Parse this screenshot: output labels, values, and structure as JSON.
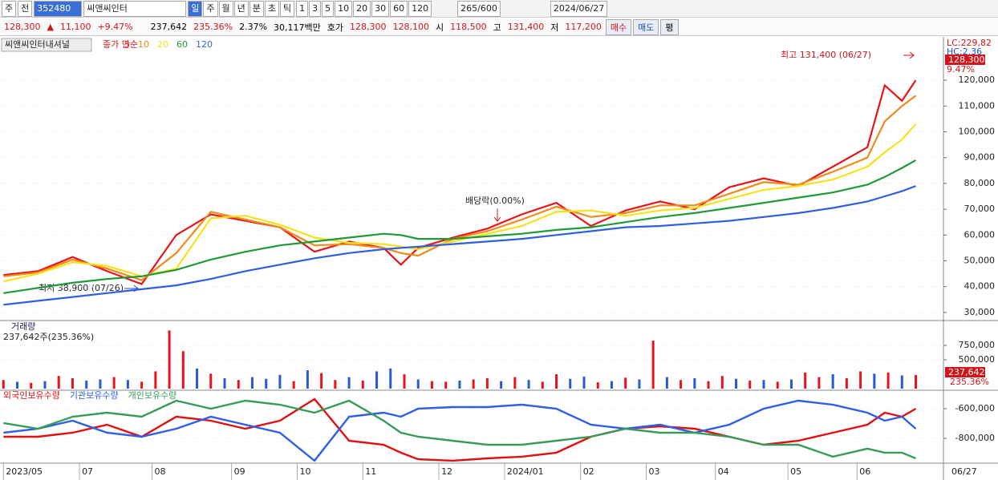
{
  "toolbar": {
    "market": "주",
    "prev": "전",
    "code": "352480",
    "name": "씨앤씨인터",
    "periods": [
      "일",
      "주",
      "월",
      "년",
      "분",
      "초",
      "틱"
    ],
    "intervals": [
      "1",
      "3",
      "5",
      "10",
      "20",
      "30",
      "60",
      "120"
    ],
    "count": "265/600",
    "date": "2024/06/27"
  },
  "info": {
    "price": "128,300",
    "arrow": "▲",
    "change": "11,100",
    "change_pct": "+9.47%",
    "volume": "237,642",
    "volume_pct": "235.36%",
    "turnover": "2.37%",
    "amount": "30,117백만",
    "quote_label": "호가",
    "ask": "128,300",
    "bid": "128,100",
    "open_label": "시",
    "open": "118,500",
    "high_label": "고",
    "high": "131,400",
    "low_label": "저",
    "low": "117,200",
    "buy": "매수",
    "sell": "매도",
    "avg": "평"
  },
  "chart_data": [
    {
      "type": "line",
      "title": "씨앤씨인터내셔널",
      "legend_prefix": "종가 단순",
      "x": [
        0,
        10,
        20,
        30,
        40,
        50,
        60,
        70,
        80,
        90,
        100,
        110,
        115,
        120,
        130,
        140,
        150,
        160,
        170,
        180,
        190,
        200,
        210,
        220,
        230,
        240,
        250,
        255,
        260,
        264
      ],
      "series": [
        {
          "name": "5",
          "color": "#e8141a",
          "values": [
            44500,
            46000,
            51500,
            46000,
            41000,
            60000,
            68000,
            65500,
            63000,
            53500,
            57500,
            55000,
            48500,
            55000,
            59000,
            62500,
            68000,
            72500,
            63500,
            69500,
            73000,
            70000,
            78500,
            82000,
            79000,
            86500,
            94000,
            118000,
            112000,
            120000
          ]
        },
        {
          "name": "10",
          "color": "#f08a1a",
          "values": [
            44000,
            45500,
            50500,
            47000,
            42500,
            53000,
            69000,
            66000,
            63000,
            56000,
            56500,
            55000,
            53000,
            52000,
            58500,
            61500,
            66000,
            71000,
            67000,
            68500,
            71500,
            71500,
            76000,
            80500,
            79500,
            84500,
            90000,
            104000,
            110000,
            114000
          ]
        },
        {
          "name": "20",
          "color": "#f5e21c",
          "values": [
            42000,
            45000,
            49500,
            48000,
            44000,
            47000,
            66500,
            67500,
            64000,
            59000,
            57000,
            56500,
            55500,
            54500,
            57500,
            60500,
            63500,
            69000,
            69500,
            67500,
            69500,
            70500,
            74000,
            77500,
            79000,
            81500,
            86500,
            92000,
            97000,
            103000
          ]
        },
        {
          "name": "60",
          "color": "#1f9a34",
          "values": [
            37500,
            39500,
            41500,
            43000,
            44000,
            46500,
            50500,
            53500,
            56000,
            57500,
            59000,
            60500,
            60000,
            58500,
            58500,
            59500,
            60500,
            62000,
            63000,
            65000,
            67000,
            68500,
            70500,
            72500,
            74500,
            76500,
            79500,
            82500,
            86000,
            89000
          ]
        },
        {
          "name": "120",
          "color": "#2f5fe0",
          "values": [
            33000,
            34500,
            36000,
            37500,
            39000,
            40500,
            43000,
            46000,
            48500,
            51000,
            53000,
            54500,
            55000,
            55500,
            56500,
            57500,
            58500,
            60000,
            61500,
            63000,
            63500,
            64500,
            65500,
            67000,
            68500,
            70500,
            73000,
            75000,
            77000,
            79000
          ]
        }
      ],
      "xlim": [
        -1,
        272
      ],
      "ylim": [
        27800,
        134000
      ],
      "yticks": [
        {
          "value": 30000,
          "label": "30,000"
        },
        {
          "value": 40000,
          "label": "40,000"
        },
        {
          "value": 50000,
          "label": "50,000"
        },
        {
          "value": 60000,
          "label": "60,000"
        },
        {
          "value": 70000,
          "label": "70,000"
        },
        {
          "value": 80000,
          "label": "80,000"
        },
        {
          "value": 90000,
          "label": "90,000"
        },
        {
          "value": 100000,
          "label": "100,000"
        },
        {
          "value": 110000,
          "label": "110,000"
        },
        {
          "value": 120000,
          "label": "120,000"
        }
      ],
      "annotations": {
        "high": "최고 131,400 (06/27)",
        "low": "최저 38,900 (07/26)",
        "dividend": "배당락(0.00%)"
      },
      "right_labels": {
        "lc": "LC:229,82",
        "hc": "HC:2.36",
        "price": "128,300",
        "pct": "9.47%"
      }
    },
    {
      "type": "bar",
      "title": "거래량",
      "subtitle": "237,642주(235.36%)",
      "x": [
        0,
        4,
        8,
        12,
        16,
        20,
        24,
        28,
        32,
        36,
        40,
        44,
        48,
        52,
        56,
        60,
        64,
        68,
        72,
        76,
        80,
        84,
        88,
        92,
        96,
        100,
        104,
        108,
        112,
        116,
        120,
        124,
        128,
        132,
        136,
        140,
        144,
        148,
        152,
        156,
        160,
        164,
        168,
        172,
        176,
        180,
        184,
        188,
        192,
        196,
        200,
        204,
        208,
        212,
        216,
        220,
        224,
        228,
        232,
        236,
        240,
        244,
        248,
        252,
        256,
        260,
        264
      ],
      "series": [
        {
          "color": "#e8141a",
          "values": [
            150000,
            null,
            100000,
            null,
            220000,
            180000,
            null,
            null,
            200000,
            null,
            120000,
            300000,
            1010000,
            650000,
            null,
            260000,
            null,
            150000,
            null,
            null,
            null,
            130000,
            null,
            270000,
            150000,
            null,
            140000,
            null,
            null,
            250000,
            null,
            130000,
            120000,
            null,
            160000,
            180000,
            null,
            200000,
            null,
            120000,
            250000,
            null,
            null,
            110000,
            null,
            190000,
            null,
            833000,
            null,
            150000,
            null,
            130000,
            220000,
            null,
            140000,
            null,
            120000,
            null,
            280000,
            200000,
            null,
            180000,
            300000,
            null,
            280000,
            null,
            237642
          ]
        },
        {
          "color": "#2a5ad8",
          "values": [
            null,
            120000,
            null,
            130000,
            null,
            null,
            140000,
            160000,
            null,
            150000,
            null,
            null,
            null,
            null,
            350000,
            null,
            180000,
            null,
            200000,
            170000,
            240000,
            null,
            320000,
            null,
            null,
            200000,
            null,
            300000,
            350000,
            null,
            160000,
            null,
            null,
            140000,
            null,
            null,
            130000,
            null,
            150000,
            null,
            null,
            170000,
            210000,
            null,
            130000,
            null,
            160000,
            null,
            200000,
            null,
            180000,
            null,
            null,
            170000,
            null,
            150000,
            null,
            160000,
            null,
            null,
            250000,
            null,
            null,
            260000,
            null,
            230000,
            null
          ]
        }
      ],
      "xlim": [
        -1,
        272
      ],
      "ylim": [
        0,
        1140000
      ],
      "yticks": [
        {
          "value": 500000,
          "label": "500,000"
        },
        {
          "value": 750000,
          "label": "750,000"
        }
      ],
      "right_labels": {
        "volume": "237,642",
        "pct": "235.36%"
      }
    },
    {
      "type": "line",
      "x": [
        0,
        10,
        20,
        30,
        40,
        50,
        60,
        70,
        80,
        90,
        100,
        110,
        115,
        120,
        130,
        140,
        150,
        160,
        170,
        180,
        190,
        200,
        210,
        220,
        230,
        240,
        250,
        255,
        260,
        264
      ],
      "series": [
        {
          "name": "외국인보유수량",
          "color": "#e01010",
          "values": [
            -789000,
            -789000,
            -762000,
            -708000,
            -789000,
            -654000,
            -681000,
            -735000,
            -681000,
            -535000,
            -816000,
            -843000,
            -897000,
            -941000,
            -951000,
            -935000,
            -924000,
            -897000,
            -789000,
            -735000,
            -719000,
            -735000,
            -789000,
            -843000,
            -816000,
            -762000,
            -708000,
            -627000,
            -654000,
            -600000
          ]
        },
        {
          "name": "기관보유수량",
          "color": "#2f5fe8",
          "values": [
            -762000,
            -735000,
            -681000,
            -762000,
            -789000,
            -735000,
            -654000,
            -708000,
            -762000,
            -951000,
            -654000,
            -627000,
            -654000,
            -600000,
            -589000,
            -589000,
            -573000,
            -600000,
            -708000,
            -735000,
            -708000,
            -762000,
            -708000,
            -600000,
            -546000,
            -573000,
            -627000,
            -681000,
            -654000,
            -735000
          ]
        },
        {
          "name": "개인보유수량",
          "color": "#3a9a5a",
          "values": [
            -697000,
            -735000,
            -654000,
            -627000,
            -654000,
            -546000,
            -600000,
            -546000,
            -573000,
            -627000,
            -546000,
            -681000,
            -762000,
            -789000,
            -816000,
            -843000,
            -843000,
            -816000,
            -789000,
            -735000,
            -762000,
            -762000,
            -789000,
            -843000,
            -843000,
            -924000,
            -870000,
            -897000,
            -897000,
            -935000
          ]
        }
      ],
      "xlim": [
        -1,
        272
      ],
      "ylim": [
        -967600,
        -491900
      ],
      "yticks": [
        {
          "value": -800000,
          "label": "-800,000"
        },
        {
          "value": -600000,
          "label": "-600,000"
        }
      ],
      "xticks": [
        {
          "value": 0,
          "label": "2023/05"
        },
        {
          "value": 22,
          "label": "07"
        },
        {
          "value": 43,
          "label": "08"
        },
        {
          "value": 66,
          "label": "09"
        },
        {
          "value": 85,
          "label": "10"
        },
        {
          "value": 104,
          "label": "11"
        },
        {
          "value": 126,
          "label": "12"
        },
        {
          "value": 145,
          "label": "2024/01"
        },
        {
          "value": 167,
          "label": "02"
        },
        {
          "value": 186,
          "label": "03"
        },
        {
          "value": 206,
          "label": "04"
        },
        {
          "value": 227,
          "label": "05"
        },
        {
          "value": 247,
          "label": "06"
        }
      ],
      "last_date": "06/27"
    }
  ]
}
